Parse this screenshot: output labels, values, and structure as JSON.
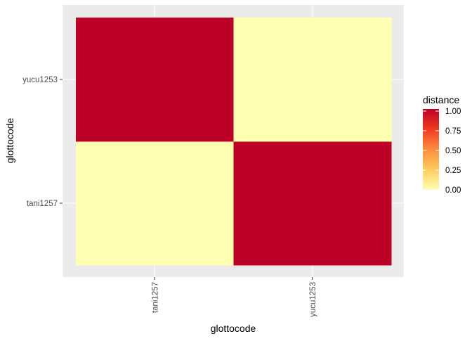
{
  "chart_data": {
    "type": "heatmap",
    "title": "",
    "xlabel": "glottocode",
    "ylabel": "glottocode",
    "x_categories": [
      "tani1257",
      "yucu1253"
    ],
    "y_categories": [
      "tani1257",
      "yucu1253"
    ],
    "cells": [
      {
        "x": "tani1257",
        "y": "tani1257",
        "value": 0.0
      },
      {
        "x": "tani1257",
        "y": "yucu1253",
        "value": 1.0
      },
      {
        "x": "yucu1253",
        "y": "tani1257",
        "value": 1.0
      },
      {
        "x": "yucu1253",
        "y": "yucu1253",
        "value": 0.0
      }
    ],
    "legend": {
      "title": "distance",
      "position": "right",
      "range": [
        0,
        1
      ],
      "ticks": [
        "0.00",
        "0.25",
        "0.50",
        "0.75",
        "1.00"
      ],
      "colors": [
        "#FFFFB2",
        "#FECC5C",
        "#FD8D3C",
        "#F03B20",
        "#BD0026"
      ]
    },
    "panel_background": "#EBEBEB",
    "grid": true
  }
}
